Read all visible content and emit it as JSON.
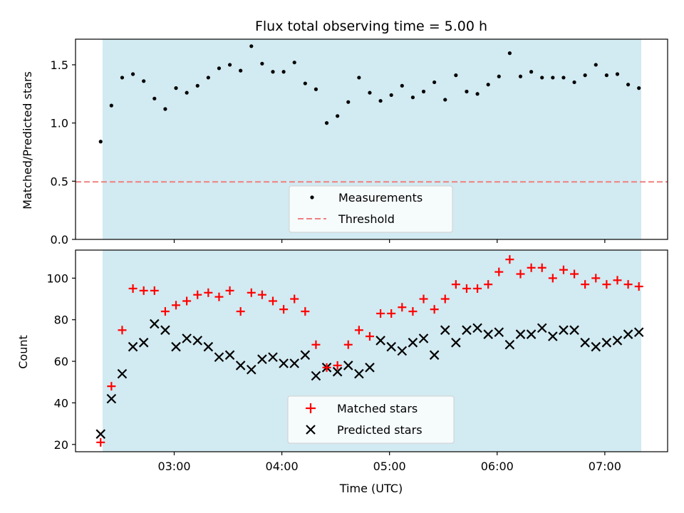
{
  "chart_data": [
    {
      "type": "scatter",
      "title": "Flux total observing time = 5.00 h",
      "xlabel": "",
      "ylabel": "Matched/Predicted stars",
      "ylim": [
        0,
        1.72
      ],
      "yticks": [
        "0.0",
        "0.5",
        "1.0",
        "1.5"
      ],
      "ytick_values": [
        0,
        0.5,
        1.0,
        1.5
      ],
      "shaded_span": [
        "02:19",
        "07:19"
      ],
      "shade_color": "#add8e6",
      "series": [
        {
          "name": "Measurements",
          "marker": "dot",
          "color": "#000000",
          "x": [
            "02:19",
            "02:25",
            "02:31",
            "02:37",
            "02:43",
            "02:49",
            "02:55",
            "03:01",
            "03:07",
            "03:13",
            "03:19",
            "03:25",
            "03:31",
            "03:37",
            "03:43",
            "03:49",
            "03:55",
            "04:01",
            "04:07",
            "04:13",
            "04:19",
            "04:25",
            "04:31",
            "04:37",
            "04:43",
            "04:49",
            "04:55",
            "05:01",
            "05:07",
            "05:13",
            "05:19",
            "05:25",
            "05:31",
            "05:37",
            "05:43",
            "05:49",
            "05:55",
            "06:01",
            "06:07",
            "06:13",
            "06:19",
            "06:25",
            "06:31",
            "06:37",
            "06:43",
            "06:49",
            "06:55",
            "07:01",
            "07:07",
            "07:13",
            "07:19"
          ],
          "y": [
            0.84,
            1.15,
            1.39,
            1.42,
            1.36,
            1.21,
            1.12,
            1.3,
            1.26,
            1.32,
            1.39,
            1.47,
            1.5,
            1.45,
            1.66,
            1.51,
            1.44,
            1.44,
            1.52,
            1.34,
            1.29,
            1.0,
            1.06,
            1.18,
            1.39,
            1.26,
            1.19,
            1.24,
            1.32,
            1.22,
            1.27,
            1.35,
            1.2,
            1.41,
            1.27,
            1.25,
            1.33,
            1.4,
            1.6,
            1.4,
            1.44,
            1.39,
            1.39,
            1.39,
            1.35,
            1.41,
            1.5,
            1.41,
            1.42,
            1.33,
            1.3
          ]
        },
        {
          "name": "Threshold",
          "marker": "dashed-line",
          "color": "#f08080",
          "y": 0.5
        }
      ],
      "legend": "lower-center"
    },
    {
      "type": "scatter",
      "title": "",
      "xlabel": "Time (UTC)",
      "ylabel": "Count",
      "ylim": [
        16.5,
        113.5
      ],
      "yticks": [
        "20",
        "40",
        "60",
        "80",
        "100"
      ],
      "ytick_values": [
        20,
        40,
        60,
        80,
        100
      ],
      "xticks": [
        "03:00",
        "04:00",
        "05:00",
        "06:00",
        "07:00"
      ],
      "xtick_values": [
        "03:00",
        "04:00",
        "05:00",
        "06:00",
        "07:00"
      ],
      "xlim": [
        "02:05",
        "07:35"
      ],
      "shaded_span": [
        "02:19",
        "07:19"
      ],
      "shade_color": "#add8e6",
      "series": [
        {
          "name": "Matched stars",
          "marker": "plus",
          "color": "#ff0000",
          "x": [
            "02:19",
            "02:25",
            "02:31",
            "02:37",
            "02:43",
            "02:49",
            "02:55",
            "03:01",
            "03:07",
            "03:13",
            "03:19",
            "03:25",
            "03:31",
            "03:37",
            "03:43",
            "03:49",
            "03:55",
            "04:01",
            "04:07",
            "04:13",
            "04:19",
            "04:25",
            "04:31",
            "04:37",
            "04:43",
            "04:49",
            "04:55",
            "05:01",
            "05:07",
            "05:13",
            "05:19",
            "05:25",
            "05:31",
            "05:37",
            "05:43",
            "05:49",
            "05:55",
            "06:01",
            "06:07",
            "06:13",
            "06:19",
            "06:25",
            "06:31",
            "06:37",
            "06:43",
            "06:49",
            "06:55",
            "07:01",
            "07:07",
            "07:13",
            "07:19"
          ],
          "y": [
            21,
            48,
            75,
            95,
            94,
            94,
            84,
            87,
            89,
            92,
            93,
            91,
            94,
            84,
            93,
            92,
            89,
            85,
            90,
            84,
            68,
            57,
            58,
            68,
            75,
            72,
            83,
            83,
            86,
            84,
            90,
            85,
            90,
            97,
            95,
            95,
            97,
            103,
            109,
            102,
            105,
            105,
            100,
            104,
            102,
            97,
            100,
            97,
            99,
            97,
            96
          ]
        },
        {
          "name": "Predicted stars",
          "marker": "x",
          "color": "#000000",
          "x": [
            "02:19",
            "02:25",
            "02:31",
            "02:37",
            "02:43",
            "02:49",
            "02:55",
            "03:01",
            "03:07",
            "03:13",
            "03:19",
            "03:25",
            "03:31",
            "03:37",
            "03:43",
            "03:49",
            "03:55",
            "04:01",
            "04:07",
            "04:13",
            "04:19",
            "04:25",
            "04:31",
            "04:37",
            "04:43",
            "04:49",
            "04:55",
            "05:01",
            "05:07",
            "05:13",
            "05:19",
            "05:25",
            "05:31",
            "05:37",
            "05:43",
            "05:49",
            "05:55",
            "06:01",
            "06:07",
            "06:13",
            "06:19",
            "06:25",
            "06:31",
            "06:37",
            "06:43",
            "06:49",
            "06:55",
            "07:01",
            "07:07",
            "07:13",
            "07:19"
          ],
          "y": [
            25,
            42,
            54,
            67,
            69,
            78,
            75,
            67,
            71,
            70,
            67,
            62,
            63,
            58,
            56,
            61,
            62,
            59,
            59,
            63,
            53,
            57,
            55,
            58,
            54,
            57,
            70,
            67,
            65,
            69,
            71,
            63,
            75,
            69,
            75,
            76,
            73,
            74,
            68,
            73,
            73,
            76,
            72,
            75,
            75,
            69,
            67,
            69,
            70,
            73,
            74
          ]
        }
      ],
      "legend": "lower-center"
    }
  ]
}
